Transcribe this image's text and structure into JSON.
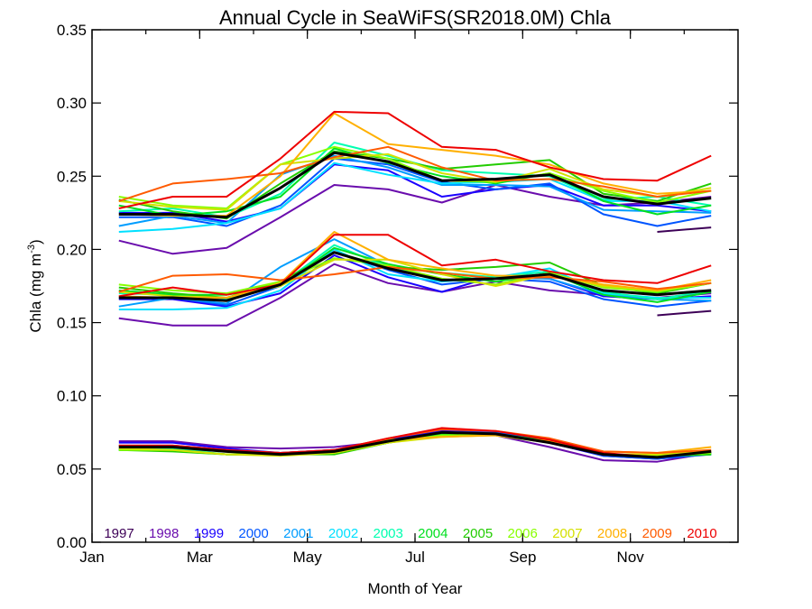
{
  "chart_data": {
    "type": "line",
    "title": "Annual Cycle in SeaWiFS(SR2018.0M) Chla",
    "xlabel": "Month of Year",
    "ylabel_main": "Chla (mg m",
    "ylabel_sup": "-3",
    "ylabel_close": ")",
    "xlim": [
      1,
      13
    ],
    "ylim": [
      0,
      0.35
    ],
    "x_ticks": [
      {
        "x": 1,
        "label": "Jan"
      },
      {
        "x": 3,
        "label": "Mar"
      },
      {
        "x": 5,
        "label": "May"
      },
      {
        "x": 7,
        "label": "Jul"
      },
      {
        "x": 9,
        "label": "Sep"
      },
      {
        "x": 11,
        "label": "Nov"
      }
    ],
    "y_ticks": [
      {
        "y": 0.0,
        "label": "0.00"
      },
      {
        "y": 0.05,
        "label": "0.05"
      },
      {
        "y": 0.1,
        "label": "0.10"
      },
      {
        "y": 0.15,
        "label": "0.15"
      },
      {
        "y": 0.2,
        "label": "0.20"
      },
      {
        "y": 0.25,
        "label": "0.25"
      },
      {
        "y": 0.3,
        "label": "0.30"
      },
      {
        "y": 0.35,
        "label": "0.35"
      }
    ],
    "x": [
      1.5,
      2.5,
      3.5,
      4.5,
      5.5,
      6.5,
      7.5,
      8.5,
      9.5,
      10.5,
      11.5,
      12.5
    ],
    "legend_placement": "bottom",
    "mean_color": "#000000",
    "series": [
      {
        "name": "1997",
        "color": "#3d0057",
        "high": [
          null,
          null,
          null,
          null,
          null,
          null,
          null,
          null,
          null,
          null,
          0.212,
          0.215
        ],
        "mid": [
          null,
          null,
          null,
          null,
          null,
          null,
          null,
          null,
          null,
          null,
          0.155,
          0.158
        ],
        "low": [
          null,
          null,
          null,
          null,
          null,
          null,
          null,
          null,
          null,
          null,
          null,
          null
        ]
      },
      {
        "name": "1998",
        "color": "#6a0dad",
        "high": [
          0.206,
          0.197,
          0.201,
          0.222,
          0.244,
          0.241,
          0.232,
          0.244,
          0.236,
          0.23,
          0.232,
          0.236
        ],
        "mid": [
          0.153,
          0.148,
          0.148,
          0.167,
          0.19,
          0.177,
          0.171,
          0.178,
          0.172,
          0.169,
          0.167,
          0.17
        ],
        "low": [
          0.069,
          0.069,
          0.065,
          0.064,
          0.065,
          0.069,
          0.075,
          0.073,
          0.065,
          0.056,
          0.055,
          0.061
        ]
      },
      {
        "name": "1999",
        "color": "#1a00ff",
        "high": [
          0.225,
          0.225,
          0.219,
          0.228,
          0.258,
          0.254,
          0.236,
          0.241,
          0.244,
          0.23,
          0.23,
          0.226
        ],
        "mid": [
          0.166,
          0.166,
          0.161,
          0.17,
          0.196,
          0.181,
          0.171,
          0.182,
          0.18,
          0.168,
          0.166,
          0.168
        ],
        "low": [
          0.068,
          0.068,
          0.064,
          0.061,
          0.063,
          0.07,
          0.076,
          0.075,
          0.068,
          0.059,
          0.057,
          0.061
        ]
      },
      {
        "name": "2000",
        "color": "#0055ff",
        "high": [
          0.222,
          0.222,
          0.216,
          0.23,
          0.262,
          0.258,
          0.246,
          0.241,
          0.245,
          0.224,
          0.216,
          0.223
        ],
        "mid": [
          0.167,
          0.167,
          0.162,
          0.175,
          0.198,
          0.186,
          0.176,
          0.18,
          0.178,
          0.166,
          0.161,
          0.165
        ],
        "low": [
          0.066,
          0.066,
          0.063,
          0.061,
          0.063,
          0.069,
          0.075,
          0.075,
          0.069,
          0.059,
          0.057,
          0.06
        ]
      },
      {
        "name": "2001",
        "color": "#009dff",
        "high": [
          0.216,
          0.223,
          0.218,
          0.251,
          0.264,
          0.256,
          0.244,
          0.244,
          0.243,
          0.227,
          0.226,
          0.225
        ],
        "mid": [
          0.161,
          0.167,
          0.163,
          0.188,
          0.207,
          0.189,
          0.179,
          0.181,
          0.18,
          0.169,
          0.166,
          0.165
        ],
        "low": [
          0.064,
          0.064,
          0.062,
          0.061,
          0.062,
          0.069,
          0.074,
          0.074,
          0.068,
          0.06,
          0.059,
          0.06
        ]
      },
      {
        "name": "2002",
        "color": "#00e0ff",
        "high": [
          0.212,
          0.214,
          0.218,
          0.228,
          0.259,
          0.251,
          0.245,
          0.246,
          0.248,
          0.233,
          0.233,
          0.226
        ],
        "mid": [
          0.159,
          0.159,
          0.16,
          0.172,
          0.2,
          0.183,
          0.178,
          0.181,
          0.187,
          0.17,
          0.167,
          0.167
        ],
        "low": [
          0.063,
          0.063,
          0.06,
          0.06,
          0.061,
          0.068,
          0.074,
          0.074,
          0.069,
          0.06,
          0.059,
          0.06
        ]
      },
      {
        "name": "2003",
        "color": "#00ffb0",
        "high": [
          0.226,
          0.228,
          0.222,
          0.238,
          0.273,
          0.264,
          0.254,
          0.252,
          0.25,
          0.234,
          0.236,
          0.23
        ],
        "mid": [
          0.17,
          0.169,
          0.166,
          0.176,
          0.203,
          0.188,
          0.184,
          0.181,
          0.185,
          0.171,
          0.166,
          0.172
        ],
        "low": [
          0.064,
          0.064,
          0.06,
          0.06,
          0.061,
          0.068,
          0.074,
          0.074,
          0.068,
          0.06,
          0.059,
          0.061
        ]
      },
      {
        "name": "2004",
        "color": "#00e020",
        "high": [
          0.23,
          0.223,
          0.226,
          0.236,
          0.269,
          0.259,
          0.25,
          0.245,
          0.252,
          0.233,
          0.224,
          0.23
        ],
        "mid": [
          0.172,
          0.169,
          0.169,
          0.175,
          0.201,
          0.19,
          0.183,
          0.178,
          0.184,
          0.169,
          0.164,
          0.171
        ],
        "low": [
          0.063,
          0.063,
          0.06,
          0.06,
          0.061,
          0.068,
          0.074,
          0.074,
          0.069,
          0.06,
          0.059,
          0.06
        ]
      },
      {
        "name": "2005",
        "color": "#22cc00",
        "high": [
          0.234,
          0.226,
          0.221,
          0.245,
          0.267,
          0.262,
          0.255,
          0.258,
          0.261,
          0.238,
          0.233,
          0.245
        ],
        "mid": [
          0.174,
          0.17,
          0.167,
          0.178,
          0.198,
          0.188,
          0.186,
          0.188,
          0.191,
          0.175,
          0.17,
          0.177
        ],
        "low": [
          0.063,
          0.062,
          0.06,
          0.06,
          0.06,
          0.068,
          0.073,
          0.074,
          0.069,
          0.06,
          0.059,
          0.06
        ]
      },
      {
        "name": "2006",
        "color": "#88ff00",
        "high": [
          0.236,
          0.23,
          0.228,
          0.258,
          0.27,
          0.262,
          0.247,
          0.246,
          0.252,
          0.24,
          0.232,
          0.24
        ],
        "mid": [
          0.176,
          0.172,
          0.17,
          0.178,
          0.194,
          0.189,
          0.18,
          0.176,
          0.184,
          0.174,
          0.171,
          0.177
        ],
        "low": [
          0.063,
          0.063,
          0.06,
          0.06,
          0.061,
          0.068,
          0.073,
          0.073,
          0.068,
          0.06,
          0.059,
          0.061
        ]
      },
      {
        "name": "2007",
        "color": "#d4e000",
        "high": [
          0.233,
          0.229,
          0.227,
          0.258,
          0.262,
          0.265,
          0.252,
          0.246,
          0.255,
          0.241,
          0.236,
          0.242
        ],
        "mid": [
          0.171,
          0.168,
          0.167,
          0.175,
          0.193,
          0.193,
          0.183,
          0.175,
          0.183,
          0.175,
          0.172,
          0.177
        ],
        "low": [
          0.064,
          0.063,
          0.06,
          0.059,
          0.061,
          0.068,
          0.072,
          0.073,
          0.068,
          0.06,
          0.06,
          0.062
        ]
      },
      {
        "name": "2008",
        "color": "#ffb000",
        "high": [
          0.224,
          0.223,
          0.223,
          0.25,
          0.293,
          0.272,
          0.268,
          0.264,
          0.258,
          0.245,
          0.238,
          0.24
        ],
        "mid": [
          0.168,
          0.167,
          0.167,
          0.177,
          0.212,
          0.193,
          0.187,
          0.182,
          0.182,
          0.176,
          0.172,
          0.179
        ],
        "low": [
          0.065,
          0.065,
          0.062,
          0.06,
          0.062,
          0.07,
          0.072,
          0.073,
          0.069,
          0.062,
          0.061,
          0.065
        ]
      },
      {
        "name": "2009",
        "color": "#ff5a00",
        "high": [
          0.233,
          0.245,
          0.248,
          0.252,
          0.263,
          0.27,
          0.256,
          0.247,
          0.248,
          0.243,
          0.236,
          0.24
        ],
        "mid": [
          0.171,
          0.182,
          0.183,
          0.179,
          0.183,
          0.188,
          0.184,
          0.18,
          0.181,
          0.178,
          0.173,
          0.177
        ],
        "low": [
          0.066,
          0.066,
          0.063,
          0.061,
          0.063,
          0.071,
          0.077,
          0.076,
          0.071,
          0.062,
          0.061,
          0.063
        ]
      },
      {
        "name": "2010",
        "color": "#ee0000",
        "high": [
          0.228,
          0.236,
          0.236,
          0.262,
          0.294,
          0.293,
          0.27,
          0.268,
          0.256,
          0.248,
          0.247,
          0.264
        ],
        "mid": [
          0.168,
          0.174,
          0.169,
          0.176,
          0.21,
          0.21,
          0.189,
          0.193,
          0.185,
          0.179,
          0.177,
          0.189
        ],
        "low": [
          0.066,
          0.066,
          0.063,
          0.061,
          0.063,
          0.071,
          0.078,
          0.076,
          0.07,
          0.061,
          0.058,
          0.062
        ]
      }
    ],
    "mean": {
      "high": [
        0.224,
        0.224,
        0.222,
        0.242,
        0.266,
        0.26,
        0.247,
        0.248,
        0.251,
        0.236,
        0.231,
        0.235
      ],
      "mid": [
        0.167,
        0.167,
        0.165,
        0.176,
        0.198,
        0.187,
        0.179,
        0.18,
        0.183,
        0.172,
        0.169,
        0.172
      ],
      "low": [
        0.065,
        0.065,
        0.062,
        0.06,
        0.062,
        0.069,
        0.075,
        0.074,
        0.068,
        0.06,
        0.058,
        0.062
      ]
    }
  }
}
